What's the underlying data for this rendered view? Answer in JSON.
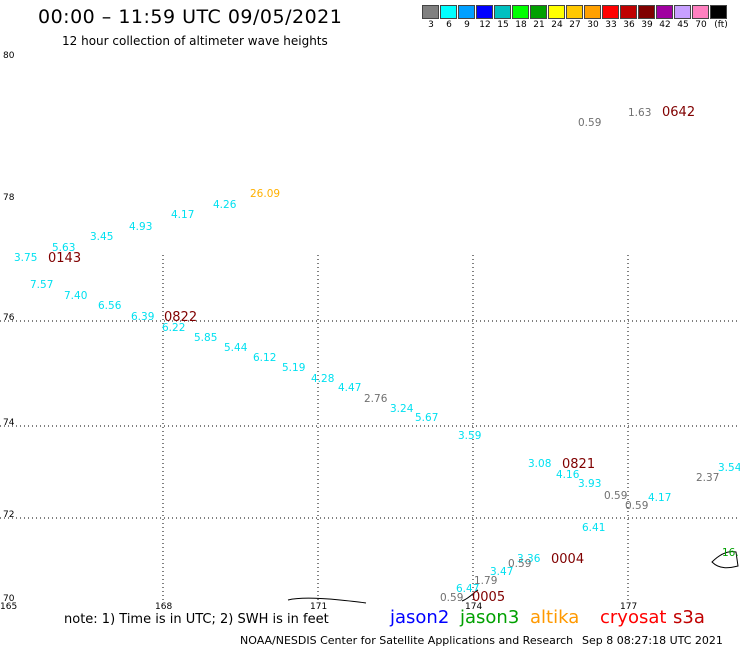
{
  "header": {
    "title": "00:00 – 11:59 UTC 09/05/2021",
    "subtitle": "12 hour collection of altimeter wave heights"
  },
  "color_scale": {
    "colors": [
      "#808080",
      "#00ffff",
      "#00a0ff",
      "#0000ff",
      "#00c0c0",
      "#00ff00",
      "#00a000",
      "#ffff00",
      "#ffc800",
      "#ffa000",
      "#ff0000",
      "#c00000",
      "#800000",
      "#a000a0",
      "#c8a0ff",
      "#ff80c0",
      "#000000"
    ],
    "labels": [
      "3",
      "6",
      "9",
      "12",
      "15",
      "18",
      "21",
      "24",
      "27",
      "30",
      "33",
      "36",
      "39",
      "42",
      "45",
      "70"
    ],
    "unit": "(ft)"
  },
  "axes": {
    "lat_labels": [
      "80",
      "78",
      "76",
      "74",
      "72",
      "70"
    ],
    "lon_labels": [
      "165",
      "168",
      "171",
      "174",
      "177"
    ]
  },
  "colors": {
    "cyan": "#00e0f0",
    "gray": "#707070",
    "orange": "#ffb000",
    "time": "#800000",
    "green": "#00a000",
    "jason2": "#0000ff",
    "jason3": "#00a000",
    "altika": "#ff9900",
    "cryosat": "#ff0000",
    "s3a": "#c00000"
  },
  "time_labels": [
    "0642",
    "0143",
    "0822",
    "0821",
    "0004",
    "0005"
  ],
  "wave_heights": {
    "cyan": [
      "5.63",
      "3.45",
      "4.93",
      "4.17",
      "4.26",
      "3.75",
      "7.57",
      "7.40",
      "6.56",
      "6.39",
      "6.22",
      "5.85",
      "5.44",
      "6.12",
      "5.19",
      "4.28",
      "4.47",
      "3.24",
      "5.67",
      "3.59",
      "3.08",
      "4.16",
      "3.93",
      "4.17",
      "3.54",
      "6.41",
      "3.36",
      "3.47",
      "6.47"
    ],
    "gray": [
      "0.59",
      "1.63",
      "2.76",
      "0.59",
      "0.59",
      "2.37",
      "0.59",
      "1.79",
      "0.59"
    ],
    "orange": [
      "26.09"
    ],
    "green": [
      "16."
    ]
  },
  "legend": {
    "note": "note:  1) Time is in UTC;  2) SWH is in feet",
    "jason2": "jason2",
    "jason3": "jason3",
    "altika": "altika",
    "cryosat": "cryosat",
    "s3a": "s3a"
  },
  "footer": {
    "credit": "NOAA/NESDIS Center for Satellite Applications and Research",
    "timestamp": "Sep  8 08:27:18 UTC 2021"
  }
}
